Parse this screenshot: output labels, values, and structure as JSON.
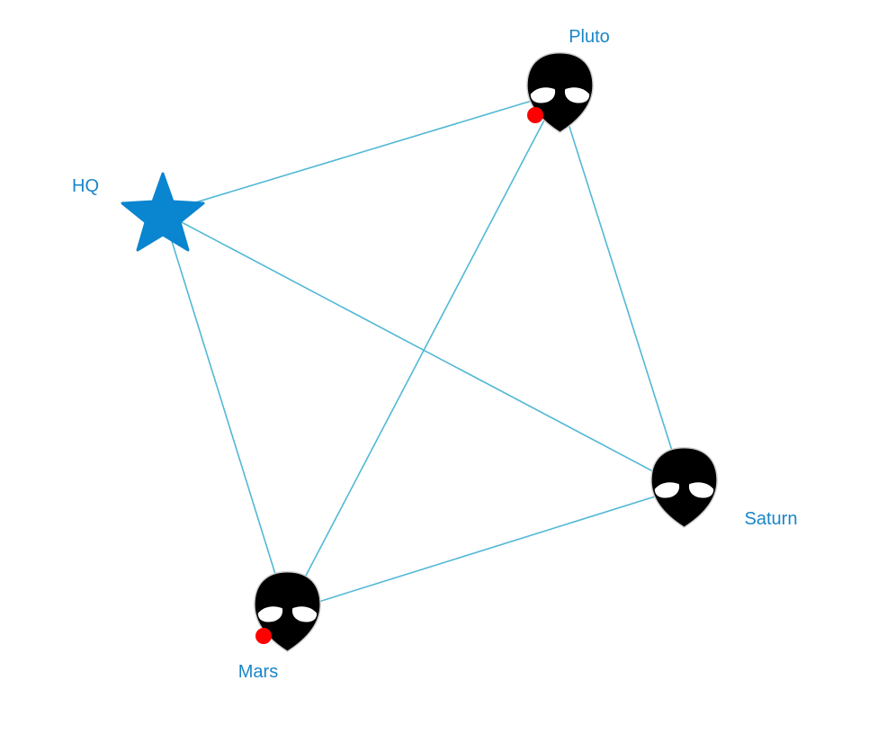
{
  "colors": {
    "edge": "#52b8d6",
    "label": "#1a86c8",
    "hq_star": "#0a85cf",
    "alien_head": "#000000",
    "alien_eyes": "#ffffff",
    "alert_dot": "#ff0000"
  },
  "nodes": [
    {
      "id": "hq",
      "label": "HQ",
      "icon": "star-icon",
      "alert": false
    },
    {
      "id": "pluto",
      "label": "Pluto",
      "icon": "alien-icon",
      "alert": true
    },
    {
      "id": "saturn",
      "label": "Saturn",
      "icon": "alien-icon",
      "alert": false
    },
    {
      "id": "mars",
      "label": "Mars",
      "icon": "alien-icon",
      "alert": true
    }
  ],
  "edges": [
    {
      "from": "hq",
      "to": "pluto"
    },
    {
      "from": "hq",
      "to": "saturn"
    },
    {
      "from": "hq",
      "to": "mars"
    },
    {
      "from": "pluto",
      "to": "saturn"
    },
    {
      "from": "pluto",
      "to": "mars"
    },
    {
      "from": "saturn",
      "to": "mars"
    }
  ]
}
